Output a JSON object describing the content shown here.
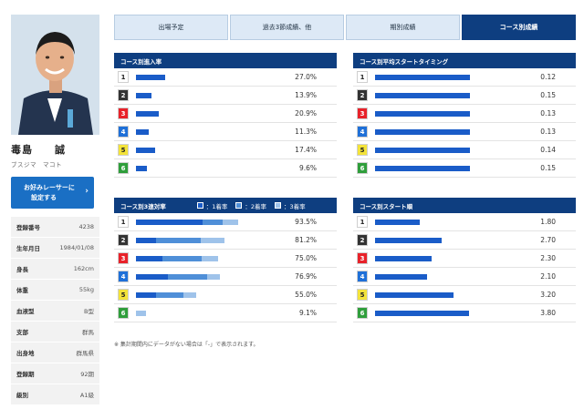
{
  "profile": {
    "name": "毒島　　誠",
    "kana": "ブスジマ　マコト",
    "fav_button": [
      "お好みレーサーに",
      "設定する"
    ],
    "stats": [
      {
        "label": "登録番号",
        "value": "4238"
      },
      {
        "label": "生年月日",
        "value": "1984/01/08"
      },
      {
        "label": "身長",
        "value": "162cm"
      },
      {
        "label": "体重",
        "value": "55kg"
      },
      {
        "label": "血液型",
        "value": "B型"
      },
      {
        "label": "支部",
        "value": "群馬"
      },
      {
        "label": "出身地",
        "value": "群馬県"
      },
      {
        "label": "登録期",
        "value": "92期"
      },
      {
        "label": "級別",
        "value": "A1級"
      }
    ]
  },
  "tabs": [
    {
      "label": "出場予定",
      "active": false
    },
    {
      "label": "過去3節成績、他",
      "active": false
    },
    {
      "label": "期別成績",
      "active": false
    },
    {
      "label": "コース別成績",
      "active": true
    }
  ],
  "lane_colors": [
    {
      "bg": "#ffffff",
      "fg": "#222222"
    },
    {
      "bg": "#333333",
      "fg": "#ffffff"
    },
    {
      "bg": "#e8222a",
      "fg": "#ffffff"
    },
    {
      "bg": "#1f70d8",
      "fg": "#ffffff"
    },
    {
      "bg": "#f3e33a",
      "fg": "#222222"
    },
    {
      "bg": "#2f9e3b",
      "fg": "#ffffff"
    }
  ],
  "bar_colors": {
    "first": "#1a5cc8",
    "second": "#4f8fd8",
    "third": "#9fc3ea"
  },
  "panels": {
    "entry": {
      "title": "コース別進入率",
      "rows": [
        {
          "lane": "1",
          "value": 27.0,
          "display": "27.0%"
        },
        {
          "lane": "2",
          "value": 13.9,
          "display": "13.9%"
        },
        {
          "lane": "3",
          "value": 20.9,
          "display": "20.9%"
        },
        {
          "lane": "4",
          "value": 11.3,
          "display": "11.3%"
        },
        {
          "lane": "5",
          "value": 17.4,
          "display": "17.4%"
        },
        {
          "lane": "6",
          "value": 9.6,
          "display": "9.6%"
        }
      ]
    },
    "start_timing": {
      "title": "コース別平均スタートタイミング",
      "rows": [
        {
          "lane": "1",
          "value": 0.12,
          "display": "0.12"
        },
        {
          "lane": "2",
          "value": 0.15,
          "display": "0.15"
        },
        {
          "lane": "3",
          "value": 0.13,
          "display": "0.13"
        },
        {
          "lane": "4",
          "value": 0.13,
          "display": "0.13"
        },
        {
          "lane": "5",
          "value": 0.14,
          "display": "0.14"
        },
        {
          "lane": "6",
          "value": 0.15,
          "display": "0.15"
        }
      ]
    },
    "top3": {
      "title": "コース別3連対率",
      "legend": [
        "：1着率",
        "：2着率",
        "：3着率"
      ],
      "rows": [
        {
          "lane": "1",
          "first": 61.0,
          "second": 18.0,
          "third": 14.5,
          "display": "93.5%"
        },
        {
          "lane": "2",
          "first": 18.0,
          "second": 41.0,
          "third": 22.2,
          "display": "81.2%"
        },
        {
          "lane": "3",
          "first": 24.0,
          "second": 36.0,
          "third": 15.0,
          "display": "75.0%"
        },
        {
          "lane": "4",
          "first": 29.0,
          "second": 36.0,
          "third": 11.9,
          "display": "76.9%"
        },
        {
          "lane": "5",
          "first": 18.0,
          "second": 25.0,
          "third": 12.0,
          "display": "55.0%"
        },
        {
          "lane": "6",
          "first": 0.0,
          "second": 0.0,
          "third": 9.1,
          "display": "9.1%"
        }
      ]
    },
    "start_order": {
      "title": "コース別スタート順",
      "rows": [
        {
          "lane": "1",
          "value": 1.8,
          "display": "1.80"
        },
        {
          "lane": "2",
          "value": 2.7,
          "display": "2.70"
        },
        {
          "lane": "3",
          "value": 2.3,
          "display": "2.30"
        },
        {
          "lane": "4",
          "value": 2.1,
          "display": "2.10"
        },
        {
          "lane": "5",
          "value": 3.2,
          "display": "3.20"
        },
        {
          "lane": "6",
          "value": 3.8,
          "display": "3.80"
        }
      ]
    }
  },
  "note": "※ 集計期間内にデータがない場合は「-」で表示されます。"
}
